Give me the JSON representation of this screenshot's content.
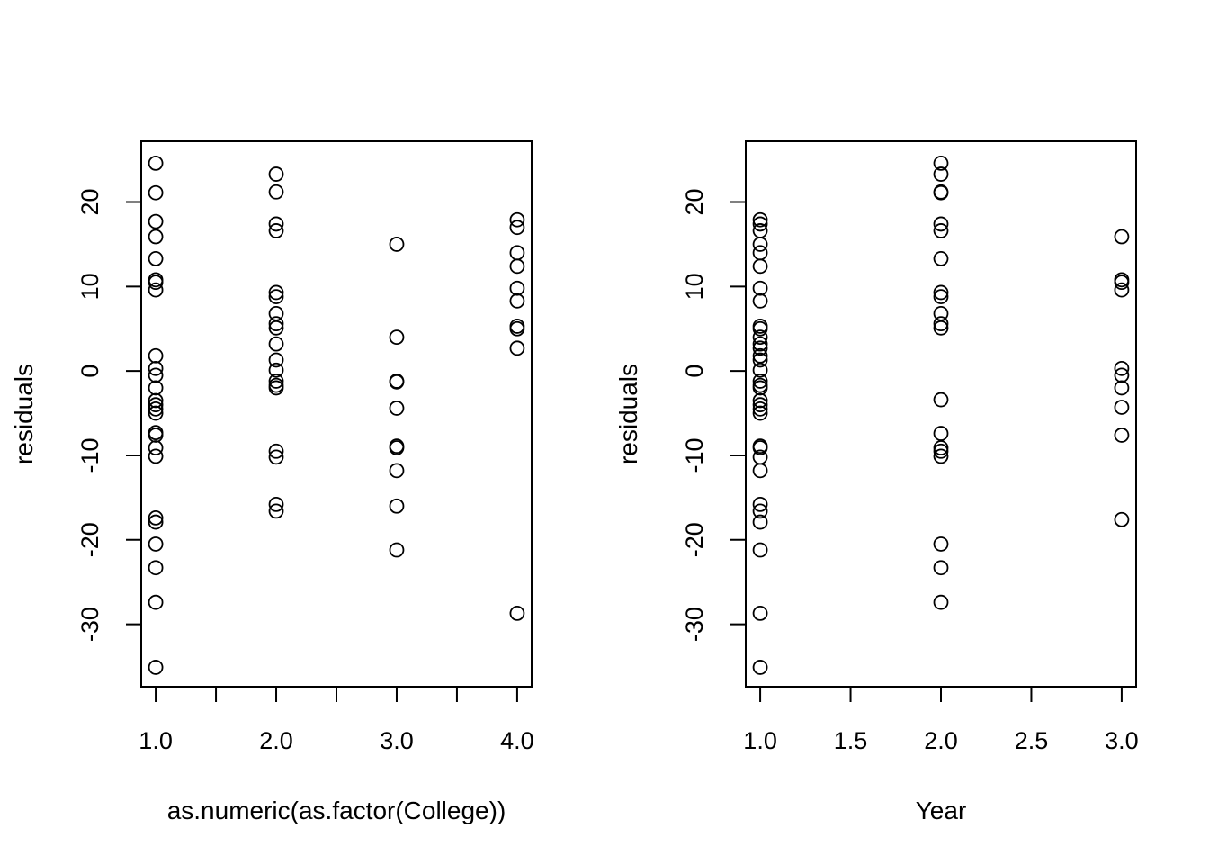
{
  "chart_data": [
    {
      "type": "scatter",
      "xlabel": "as.numeric(as.factor(College))",
      "ylabel": "residuals",
      "xlim": [
        0.88,
        4.12
      ],
      "ylim": [
        -37.4,
        27.2
      ],
      "xticks": [
        1.0,
        1.5,
        2.0,
        2.5,
        3.0,
        3.5,
        4.0
      ],
      "xtick_labels": [
        {
          "value": 1.0,
          "label": "1.0"
        },
        {
          "value": 2.0,
          "label": "2.0"
        },
        {
          "value": 3.0,
          "label": "3.0"
        },
        {
          "value": 4.0,
          "label": "4.0"
        }
      ],
      "ytick_labels": [
        {
          "value": -30,
          "label": "-30"
        },
        {
          "value": -20,
          "label": "-20"
        },
        {
          "value": -10,
          "label": "-10"
        },
        {
          "value": 0,
          "label": "0"
        },
        {
          "value": 10,
          "label": "10"
        },
        {
          "value": 20,
          "label": "20"
        }
      ],
      "points": [
        {
          "x": 1,
          "y": 24.6
        },
        {
          "x": 1,
          "y": 21.1
        },
        {
          "x": 1,
          "y": 17.7
        },
        {
          "x": 1,
          "y": 15.9
        },
        {
          "x": 1,
          "y": 13.3
        },
        {
          "x": 1,
          "y": 10.8
        },
        {
          "x": 1,
          "y": 10.5
        },
        {
          "x": 1,
          "y": 9.6
        },
        {
          "x": 1,
          "y": 1.8
        },
        {
          "x": 1,
          "y": 0.3
        },
        {
          "x": 1,
          "y": -0.5
        },
        {
          "x": 1,
          "y": -2.0
        },
        {
          "x": 1,
          "y": -3.5
        },
        {
          "x": 1,
          "y": -4.0
        },
        {
          "x": 1,
          "y": -4.5
        },
        {
          "x": 1,
          "y": -5.0
        },
        {
          "x": 1,
          "y": -7.3
        },
        {
          "x": 1,
          "y": -7.6
        },
        {
          "x": 1,
          "y": -9.1
        },
        {
          "x": 1,
          "y": -10.1
        },
        {
          "x": 1,
          "y": -17.4
        },
        {
          "x": 1,
          "y": -17.9
        },
        {
          "x": 1,
          "y": -20.5
        },
        {
          "x": 1,
          "y": -23.3
        },
        {
          "x": 1,
          "y": -27.4
        },
        {
          "x": 1,
          "y": -35.1
        },
        {
          "x": 2,
          "y": 23.3
        },
        {
          "x": 2,
          "y": 21.2
        },
        {
          "x": 2,
          "y": 17.4
        },
        {
          "x": 2,
          "y": 16.6
        },
        {
          "x": 2,
          "y": 9.3
        },
        {
          "x": 2,
          "y": 8.8
        },
        {
          "x": 2,
          "y": 6.8
        },
        {
          "x": 2,
          "y": 5.6
        },
        {
          "x": 2,
          "y": 5.1
        },
        {
          "x": 2,
          "y": 3.2
        },
        {
          "x": 2,
          "y": 1.3
        },
        {
          "x": 2,
          "y": 0.1
        },
        {
          "x": 2,
          "y": -1.2
        },
        {
          "x": 2,
          "y": -1.7
        },
        {
          "x": 2,
          "y": -2.0
        },
        {
          "x": 2,
          "y": -9.5
        },
        {
          "x": 2,
          "y": -10.2
        },
        {
          "x": 2,
          "y": -15.8
        },
        {
          "x": 2,
          "y": -16.6
        },
        {
          "x": 3,
          "y": 15.0
        },
        {
          "x": 3,
          "y": 4.0
        },
        {
          "x": 3,
          "y": -1.2
        },
        {
          "x": 3,
          "y": -1.3
        },
        {
          "x": 3,
          "y": -4.4
        },
        {
          "x": 3,
          "y": -8.9
        },
        {
          "x": 3,
          "y": -9.1
        },
        {
          "x": 3,
          "y": -11.8
        },
        {
          "x": 3,
          "y": -16.0
        },
        {
          "x": 3,
          "y": -21.2
        },
        {
          "x": 4,
          "y": 17.9
        },
        {
          "x": 4,
          "y": 17.0
        },
        {
          "x": 4,
          "y": 14.0
        },
        {
          "x": 4,
          "y": 12.4
        },
        {
          "x": 4,
          "y": 9.8
        },
        {
          "x": 4,
          "y": 8.3
        },
        {
          "x": 4,
          "y": 5.3
        },
        {
          "x": 4,
          "y": 5.0
        },
        {
          "x": 4,
          "y": 2.7
        },
        {
          "x": 4,
          "y": -28.7
        }
      ]
    },
    {
      "type": "scatter",
      "xlabel": "Year",
      "ylabel": "residuals",
      "xlim": [
        0.92,
        3.08
      ],
      "ylim": [
        -37.4,
        27.2
      ],
      "xticks": [
        1.0,
        1.5,
        2.0,
        2.5,
        3.0
      ],
      "xtick_labels": [
        {
          "value": 1.0,
          "label": "1.0"
        },
        {
          "value": 1.5,
          "label": "1.5"
        },
        {
          "value": 2.0,
          "label": "2.0"
        },
        {
          "value": 2.5,
          "label": "2.5"
        },
        {
          "value": 3.0,
          "label": "3.0"
        }
      ],
      "ytick_labels": [
        {
          "value": -30,
          "label": "-30"
        },
        {
          "value": -20,
          "label": "-20"
        },
        {
          "value": -10,
          "label": "-10"
        },
        {
          "value": 0,
          "label": "0"
        },
        {
          "value": 10,
          "label": "10"
        },
        {
          "value": 20,
          "label": "20"
        }
      ],
      "points": [
        {
          "x": 1,
          "y": 17.9
        },
        {
          "x": 1,
          "y": 17.4
        },
        {
          "x": 1,
          "y": 16.6
        },
        {
          "x": 1,
          "y": 15.0
        },
        {
          "x": 1,
          "y": 14.0
        },
        {
          "x": 1,
          "y": 12.4
        },
        {
          "x": 1,
          "y": 9.8
        },
        {
          "x": 1,
          "y": 8.3
        },
        {
          "x": 1,
          "y": 5.3
        },
        {
          "x": 1,
          "y": 5.0
        },
        {
          "x": 1,
          "y": 4.0
        },
        {
          "x": 1,
          "y": 3.2
        },
        {
          "x": 1,
          "y": 2.7
        },
        {
          "x": 1,
          "y": 1.8
        },
        {
          "x": 1,
          "y": 1.3
        },
        {
          "x": 1,
          "y": 0.1
        },
        {
          "x": 1,
          "y": -1.2
        },
        {
          "x": 1,
          "y": -1.7
        },
        {
          "x": 1,
          "y": -2.0
        },
        {
          "x": 1,
          "y": -3.5
        },
        {
          "x": 1,
          "y": -4.0
        },
        {
          "x": 1,
          "y": -4.5
        },
        {
          "x": 1,
          "y": -5.0
        },
        {
          "x": 1,
          "y": -8.9
        },
        {
          "x": 1,
          "y": -9.1
        },
        {
          "x": 1,
          "y": -10.2
        },
        {
          "x": 1,
          "y": -11.8
        },
        {
          "x": 1,
          "y": -15.8
        },
        {
          "x": 1,
          "y": -16.6
        },
        {
          "x": 1,
          "y": -17.9
        },
        {
          "x": 1,
          "y": -21.2
        },
        {
          "x": 1,
          "y": -28.7
        },
        {
          "x": 1,
          "y": -35.1
        },
        {
          "x": 2,
          "y": 24.6
        },
        {
          "x": 2,
          "y": 23.3
        },
        {
          "x": 2,
          "y": 21.2
        },
        {
          "x": 2,
          "y": 21.1
        },
        {
          "x": 2,
          "y": 17.4
        },
        {
          "x": 2,
          "y": 16.6
        },
        {
          "x": 2,
          "y": 13.3
        },
        {
          "x": 2,
          "y": 9.3
        },
        {
          "x": 2,
          "y": 8.8
        },
        {
          "x": 2,
          "y": 6.8
        },
        {
          "x": 2,
          "y": 5.6
        },
        {
          "x": 2,
          "y": 5.1
        },
        {
          "x": 2,
          "y": -3.4
        },
        {
          "x": 2,
          "y": -7.4
        },
        {
          "x": 2,
          "y": -9.1
        },
        {
          "x": 2,
          "y": -9.5
        },
        {
          "x": 2,
          "y": -10.1
        },
        {
          "x": 2,
          "y": -20.5
        },
        {
          "x": 2,
          "y": -23.3
        },
        {
          "x": 2,
          "y": -27.4
        },
        {
          "x": 3,
          "y": 15.9
        },
        {
          "x": 3,
          "y": 10.8
        },
        {
          "x": 3,
          "y": 10.5
        },
        {
          "x": 3,
          "y": 9.6
        },
        {
          "x": 3,
          "y": 0.3
        },
        {
          "x": 3,
          "y": -0.5
        },
        {
          "x": 3,
          "y": -2.0
        },
        {
          "x": 3,
          "y": -4.3
        },
        {
          "x": 3,
          "y": -7.6
        },
        {
          "x": 3,
          "y": -17.6
        }
      ]
    }
  ]
}
